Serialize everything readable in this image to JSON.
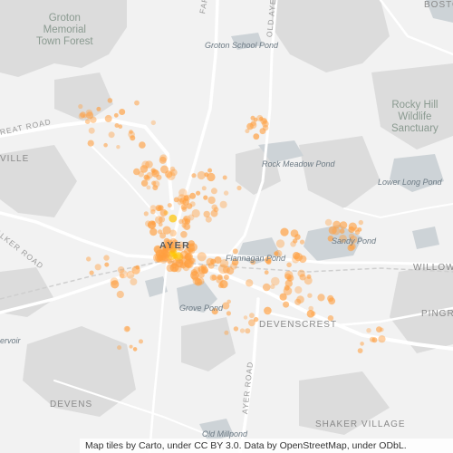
{
  "map": {
    "labels": {
      "groton_forest": "Groton\nMemorial\nTown Forest",
      "rocky_hill": "Rocky Hill\nWildlife\nSanctuary",
      "groton_school_pond": "Groton School Pond",
      "rock_meadow_pond": "Rock Meadow Pond",
      "lower_long_pond": "Lower Long Pond",
      "sandy_pond": "Sandy Pond",
      "flannagan_pond": "Flannagan Pond",
      "grove_pond": "Grove Pond",
      "old_millpond": "Old Millpond",
      "ayer": "AYER",
      "devenscrest": "DEVENSCREST",
      "devens": "DEVENS",
      "shaker_village": "SHAKER VILLAGE",
      "willow": "WILLOW",
      "pingr": "PINGR",
      "ville": "VILLE",
      "great_road": "REAT ROAD",
      "walker_road": "ALKER ROAD",
      "farmers_row": "FARMERS",
      "old_ayer_road": "OLD AYE",
      "ayer_road": "AYER ROAD",
      "boston": "BOSTO",
      "reservoir": "ervoir"
    },
    "attribution": "Map tiles by Carto, under CC BY 3.0. Data by OpenStreetMap, under ODbL."
  },
  "colors": {
    "background": "#f2f2f2",
    "forest": "#dcdcdc",
    "water": "#cdd3d7",
    "road": "#ffffff",
    "dot": "#ff9f40",
    "dot_core": "#ffc400"
  }
}
